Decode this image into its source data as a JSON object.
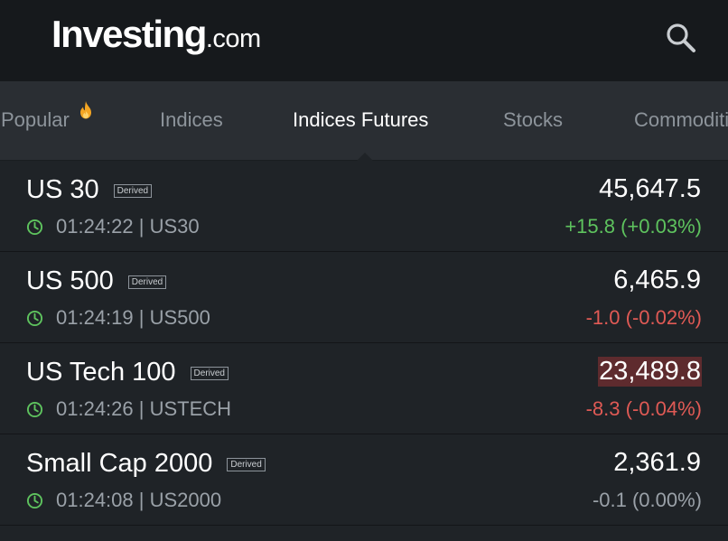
{
  "header": {
    "logo_main": "Investing",
    "logo_sub": ".com",
    "search_icon": "search-icon"
  },
  "tabs": [
    {
      "label": "Popular",
      "icon": "fire-icon",
      "active": false
    },
    {
      "label": "Indices",
      "active": false
    },
    {
      "label": "Indices Futures",
      "active": true
    },
    {
      "label": "Stocks",
      "active": false
    },
    {
      "label": "Commodities",
      "active": false
    }
  ],
  "instruments": [
    {
      "name": "US 30",
      "tag": "Derived",
      "time": "01:24:22",
      "symbol": "US30",
      "separator": "|",
      "price": "45,647.5",
      "change": "+15.8 (+0.03%)",
      "direction": "up"
    },
    {
      "name": "US 500",
      "tag": "Derived",
      "time": "01:24:19",
      "symbol": "US500",
      "separator": "|",
      "price": "6,465.9",
      "change": "-1.0 (-0.02%)",
      "direction": "down"
    },
    {
      "name": "US Tech 100",
      "tag": "Derived",
      "time": "01:24:26",
      "symbol": "USTECH",
      "separator": "|",
      "price": "23,489.8",
      "change": "-8.3 (-0.04%)",
      "direction": "down",
      "flash": true
    },
    {
      "name": "Small Cap 2000",
      "tag": "Derived",
      "time": "01:24:08",
      "symbol": "US2000",
      "separator": "|",
      "price": "2,361.9",
      "change": "-0.1 (0.00%)",
      "direction": "flat"
    }
  ],
  "colors": {
    "header_bg": "#16191c",
    "tabs_bg": "#2a2e33",
    "list_bg": "#1f2327",
    "positive": "#5ec35e",
    "negative": "#e05a55",
    "neutral": "#9aa1a8",
    "flash_bg": "#5e2b2e",
    "clock_icon": "#5ec35e",
    "fire_icon": "#f5a623"
  }
}
